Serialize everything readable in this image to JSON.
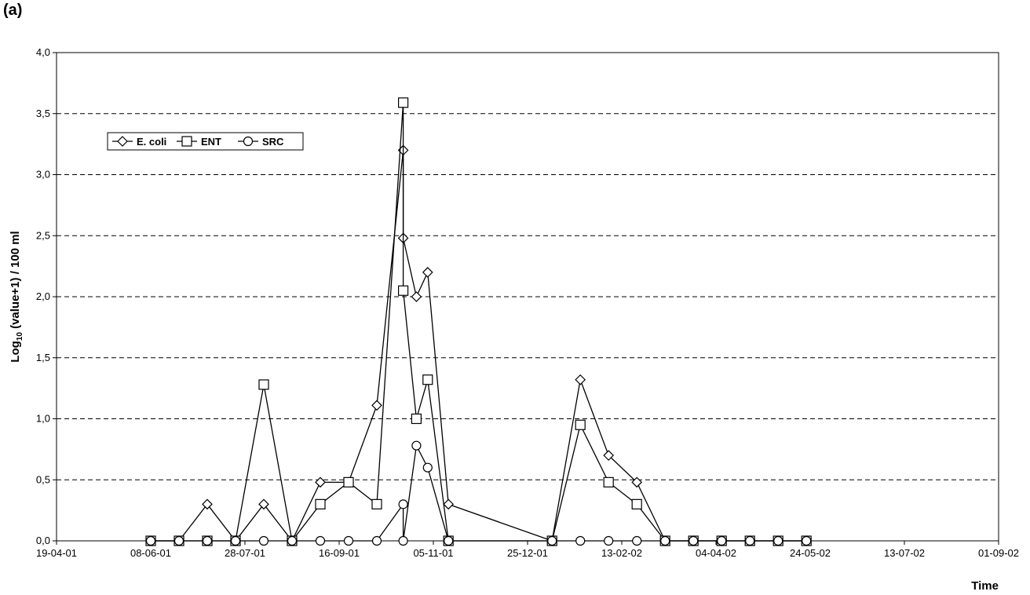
{
  "panel_label": "(a)",
  "chart_data": {
    "type": "line",
    "xlabel": "Time",
    "ylabel_main": "Log",
    "ylabel_sub": "10",
    "ylabel_rest": " (value+1) / 100 ml",
    "xlim": [
      "2001-04-19",
      "2002-09-01"
    ],
    "ylim": [
      0,
      4
    ],
    "grid": "horizontal dashed",
    "legend_position": "top-left",
    "x_ticks": [
      {
        "date": "2001-04-19",
        "label": "19-04-01"
      },
      {
        "date": "2001-06-08",
        "label": "08-06-01"
      },
      {
        "date": "2001-07-28",
        "label": "28-07-01"
      },
      {
        "date": "2001-09-16",
        "label": "16-09-01"
      },
      {
        "date": "2001-11-05",
        "label": "05-11-01"
      },
      {
        "date": "2001-12-25",
        "label": "25-12-01"
      },
      {
        "date": "2002-02-13",
        "label": "13-02-02"
      },
      {
        "date": "2002-04-04",
        "label": "04-04-02"
      },
      {
        "date": "2002-05-24",
        "label": "24-05-02"
      },
      {
        "date": "2002-07-13",
        "label": "13-07-02"
      },
      {
        "date": "2002-09-01",
        "label": "01-09-02"
      }
    ],
    "y_ticks": [
      {
        "value": 0,
        "label": "0,0"
      },
      {
        "value": 0.5,
        "label": "0,5"
      },
      {
        "value": 1,
        "label": "1,0"
      },
      {
        "value": 1.5,
        "label": "1,5"
      },
      {
        "value": 2,
        "label": "2,0"
      },
      {
        "value": 2.5,
        "label": "2,5"
      },
      {
        "value": 3,
        "label": "3,0"
      },
      {
        "value": 3.5,
        "label": "3,5"
      },
      {
        "value": 4,
        "label": "4,0"
      }
    ],
    "series": [
      {
        "name": "E. coli",
        "marker": "diamond",
        "points": [
          {
            "x": "2001-06-08",
            "y": 0
          },
          {
            "x": "2001-06-23",
            "y": 0
          },
          {
            "x": "2001-07-08",
            "y": 0.3
          },
          {
            "x": "2001-07-23",
            "y": 0
          },
          {
            "x": "2001-08-07",
            "y": 0.3
          },
          {
            "x": "2001-08-22",
            "y": 0
          },
          {
            "x": "2001-09-06",
            "y": 0.48
          },
          {
            "x": "2001-09-21",
            "y": 0.48
          },
          {
            "x": "2001-10-06",
            "y": 1.11
          },
          {
            "x": "2001-10-20",
            "y": 3.2
          },
          {
            "x": "2001-10-20",
            "y": 2.48
          },
          {
            "x": "2001-10-27",
            "y": 2.0
          },
          {
            "x": "2001-11-02",
            "y": 2.2
          },
          {
            "x": "2001-11-13",
            "y": 0.3
          },
          {
            "x": "2002-01-07",
            "y": 0
          },
          {
            "x": "2002-01-22",
            "y": 1.32
          },
          {
            "x": "2002-02-06",
            "y": 0.7
          },
          {
            "x": "2002-02-21",
            "y": 0.48
          },
          {
            "x": "2002-03-08",
            "y": 0
          },
          {
            "x": "2002-03-23",
            "y": 0
          },
          {
            "x": "2002-04-07",
            "y": 0
          },
          {
            "x": "2002-04-22",
            "y": 0
          },
          {
            "x": "2002-05-07",
            "y": 0
          },
          {
            "x": "2002-05-22",
            "y": 0
          }
        ]
      },
      {
        "name": "ENT",
        "marker": "square",
        "points": [
          {
            "x": "2001-06-08",
            "y": 0
          },
          {
            "x": "2001-06-23",
            "y": 0
          },
          {
            "x": "2001-07-08",
            "y": 0
          },
          {
            "x": "2001-07-23",
            "y": 0
          },
          {
            "x": "2001-08-07",
            "y": 1.28
          },
          {
            "x": "2001-08-22",
            "y": 0
          },
          {
            "x": "2001-09-06",
            "y": 0.3
          },
          {
            "x": "2001-09-21",
            "y": 0.48
          },
          {
            "x": "2001-10-06",
            "y": 0.3
          },
          {
            "x": "2001-10-20",
            "y": 3.59
          },
          {
            "x": "2001-10-20",
            "y": 2.05
          },
          {
            "x": "2001-10-27",
            "y": 1.0
          },
          {
            "x": "2001-11-02",
            "y": 1.32
          },
          {
            "x": "2001-11-13",
            "y": 0
          },
          {
            "x": "2002-01-07",
            "y": 0
          },
          {
            "x": "2002-01-22",
            "y": 0.95
          },
          {
            "x": "2002-02-06",
            "y": 0.48
          },
          {
            "x": "2002-02-21",
            "y": 0.3
          },
          {
            "x": "2002-03-08",
            "y": 0
          },
          {
            "x": "2002-03-23",
            "y": 0
          },
          {
            "x": "2002-04-07",
            "y": 0
          },
          {
            "x": "2002-04-22",
            "y": 0
          },
          {
            "x": "2002-05-07",
            "y": 0
          },
          {
            "x": "2002-05-22",
            "y": 0
          }
        ]
      },
      {
        "name": "SRC",
        "marker": "circle",
        "points": [
          {
            "x": "2001-06-08",
            "y": 0
          },
          {
            "x": "2001-06-23",
            "y": 0
          },
          {
            "x": "2001-07-08",
            "y": 0
          },
          {
            "x": "2001-07-23",
            "y": 0
          },
          {
            "x": "2001-08-07",
            "y": 0
          },
          {
            "x": "2001-08-22",
            "y": 0
          },
          {
            "x": "2001-09-06",
            "y": 0
          },
          {
            "x": "2001-09-21",
            "y": 0
          },
          {
            "x": "2001-10-06",
            "y": 0
          },
          {
            "x": "2001-10-20",
            "y": 0.3
          },
          {
            "x": "2001-10-20",
            "y": 0
          },
          {
            "x": "2001-10-27",
            "y": 0.78
          },
          {
            "x": "2001-11-02",
            "y": 0.6
          },
          {
            "x": "2001-11-13",
            "y": 0
          },
          {
            "x": "2002-01-07",
            "y": 0
          },
          {
            "x": "2002-01-22",
            "y": 0
          },
          {
            "x": "2002-02-06",
            "y": 0
          },
          {
            "x": "2002-02-21",
            "y": 0
          },
          {
            "x": "2002-03-08",
            "y": 0
          },
          {
            "x": "2002-03-23",
            "y": 0
          },
          {
            "x": "2002-04-07",
            "y": 0
          },
          {
            "x": "2002-04-22",
            "y": 0
          },
          {
            "x": "2002-05-07",
            "y": 0
          },
          {
            "x": "2002-05-22",
            "y": 0
          }
        ]
      }
    ]
  }
}
